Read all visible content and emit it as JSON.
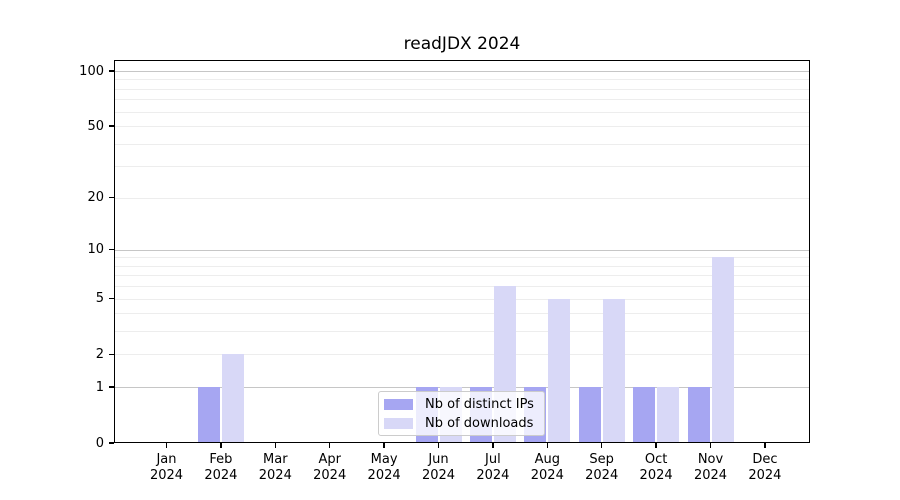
{
  "title": "readJDX 2024",
  "colors": {
    "bar_distinct_ips": "#a6a6f2",
    "bar_downloads": "#d8d8f7",
    "grid_minor": "#ededed",
    "grid_major": "#c6c6c6",
    "axis": "#000000",
    "legend_border": "#cccccc"
  },
  "legend": {
    "items": [
      {
        "label": "Nb of distinct IPs",
        "color_key": "bar_distinct_ips"
      },
      {
        "label": "Nb of downloads",
        "color_key": "bar_downloads"
      }
    ]
  },
  "chart_data": {
    "type": "bar",
    "title": "readJDX 2024",
    "categories": [
      "Jan 2024",
      "Feb 2024",
      "Mar 2024",
      "Apr 2024",
      "May 2024",
      "Jun 2024",
      "Jul 2024",
      "Aug 2024",
      "Sep 2024",
      "Oct 2024",
      "Nov 2024",
      "Dec 2024"
    ],
    "series": [
      {
        "name": "Nb of distinct IPs",
        "values": [
          0,
          1,
          0,
          0,
          0,
          1,
          1,
          1,
          1,
          1,
          1,
          0
        ]
      },
      {
        "name": "Nb of downloads",
        "values": [
          0,
          2,
          0,
          0,
          0,
          1,
          6,
          5,
          5,
          1,
          9,
          0
        ]
      }
    ],
    "xlabel": "",
    "ylabel": "",
    "y_scale": "log1p",
    "ylim": [
      0,
      101
    ],
    "y_ticks": [
      0,
      1,
      2,
      5,
      10,
      20,
      50,
      100
    ],
    "y_minor_gridlines": [
      2,
      3,
      4,
      5,
      6,
      7,
      8,
      9,
      20,
      30,
      40,
      50,
      60,
      70,
      80,
      90
    ],
    "y_major_gridlines": [
      1,
      10,
      100
    ],
    "grid": true,
    "legend_position": "inside lower center"
  }
}
